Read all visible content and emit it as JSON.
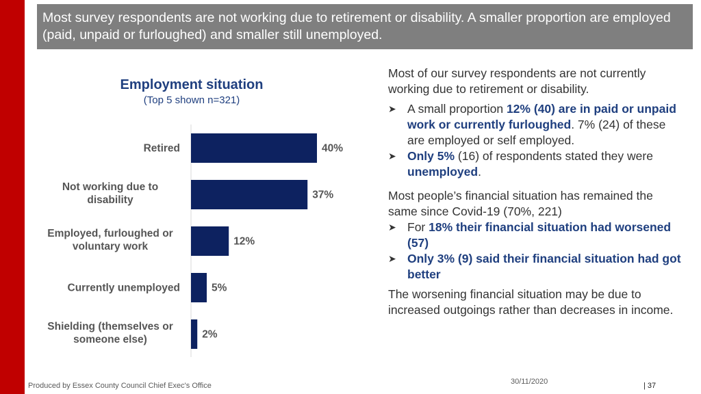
{
  "header": {
    "text": "Most survey respondents are not working due to retirement or disability.  A smaller proportion are employed (paid, unpaid or furloughed) and smaller still unemployed."
  },
  "chart_data": {
    "type": "bar",
    "orientation": "horizontal",
    "title": "Employment situation",
    "subtitle": "(Top 5 shown n=321)",
    "categories": [
      [
        "Retired"
      ],
      [
        "Not working due to",
        "disability"
      ],
      [
        "Employed, furloughed or",
        "voluntary work"
      ],
      [
        "Currently unemployed"
      ],
      [
        "Shielding (themselves or",
        "someone else)"
      ]
    ],
    "values": [
      40,
      37,
      12,
      5,
      2
    ],
    "value_labels": [
      "40%",
      "37%",
      "12%",
      "5%",
      "2%"
    ],
    "xlim": [
      0,
      40
    ],
    "bar_color": "#0d2260",
    "grid": false,
    "legend": "none"
  },
  "right_text": {
    "p1": "Most of our survey respondents are not currently working due to retirement or disability.",
    "b1_pre": "A small proportion ",
    "b1_hl": "12% (40) are in paid or unpaid work or currently furloughed",
    "b1_post": ".  7% (24) of these are employed or self employed.",
    "b2_hl1": "Only 5%",
    "b2_mid": " (16) of respondents stated they were ",
    "b2_hl2": "unemployed",
    "b2_post": ".",
    "p2": "Most people’s financial situation has remained the same since Covid-19 (70%, 221)",
    "b3_pre": "For ",
    "b3_hl": "18% their financial situation had worsened (57)",
    "b4_hl": "Only 3% (9) said their financial situation had got better",
    "p3": "The worsening financial situation may be due to increased outgoings rather than decreases in income."
  },
  "footer": {
    "left": "Produced by Essex County Council Chief Exec's Office",
    "date": "30/11/2020",
    "page": "|   37"
  },
  "colors": {
    "accent_red": "#c00000",
    "header_gray": "#7f7f7f",
    "navy": "#1f3f7f",
    "bar": "#0d2260"
  }
}
